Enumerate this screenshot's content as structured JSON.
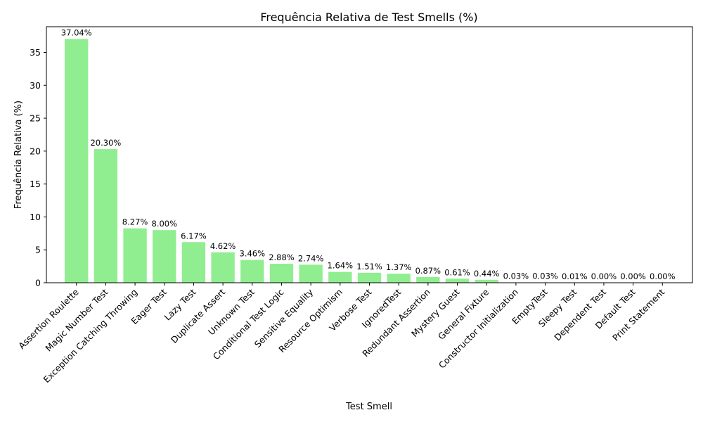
{
  "chart_data": {
    "type": "bar",
    "title": "Frequência Relativa de Test Smells (%)",
    "xlabel": "Test Smell",
    "ylabel": "Frequência Relativa (%)",
    "categories": [
      "Assertion Roulette",
      "Magic Number Test",
      "Exception Catching Throwing",
      "Eager Test",
      "Lazy Test",
      "Duplicate Assert",
      "Unknown Test",
      "Conditional Test Logic",
      "Sensitive Equality",
      "Resource Optimism",
      "Verbose Test",
      "IgnoredTest",
      "Redundant Assertion",
      "Mystery Guest",
      "General Fixture",
      "Constructor Initialization",
      "EmptyTest",
      "Sleepy Test",
      "Dependent Test",
      "Default Test",
      "Print Statement"
    ],
    "values": [
      37.04,
      20.3,
      8.27,
      8.0,
      6.17,
      4.62,
      3.46,
      2.88,
      2.74,
      1.64,
      1.51,
      1.37,
      0.87,
      0.61,
      0.44,
      0.03,
      0.03,
      0.01,
      0.0,
      0.0,
      0.0
    ],
    "data_labels": [
      "37.04%",
      "20.30%",
      "8.27%",
      "8.00%",
      "6.17%",
      "4.62%",
      "3.46%",
      "2.88%",
      "2.74%",
      "1.64%",
      "1.51%",
      "1.37%",
      "0.87%",
      "0.61%",
      "0.44%",
      "0.03%",
      "0.03%",
      "0.01%",
      "0.00%",
      "0.00%",
      "0.00%"
    ],
    "yticks": [
      0,
      5,
      10,
      15,
      20,
      25,
      30,
      35
    ],
    "ylim": [
      0,
      38.9
    ],
    "grid": false,
    "bar_color": "#90ee90"
  }
}
